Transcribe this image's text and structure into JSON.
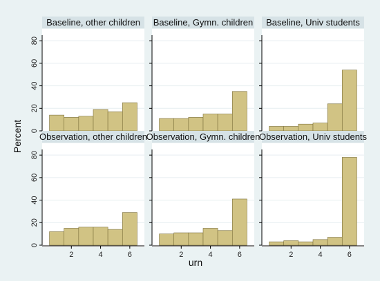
{
  "chart_data": {
    "type": "bar",
    "xlabel": "urn",
    "ylabel": "Percent",
    "xlim": [
      0,
      7
    ],
    "ylim": [
      0,
      85
    ],
    "xticks": [
      2,
      4,
      6
    ],
    "yticks": [
      0,
      20,
      40,
      60,
      80
    ],
    "bin_x": [
      1,
      2,
      3,
      4,
      5,
      6
    ],
    "bar_color": "#d1c384",
    "bar_edge": "#7a6e3a",
    "panel_header_bg": "#d6e2e6",
    "background": "#eaf2f3",
    "panels": [
      {
        "title": "Baseline, other children",
        "values": [
          14,
          12,
          13,
          19,
          17,
          25
        ]
      },
      {
        "title": "Baseline, Gymn. children",
        "values": [
          11,
          11,
          12,
          15,
          15,
          35
        ]
      },
      {
        "title": "Baseline, Univ students",
        "values": [
          4,
          4,
          6,
          7,
          24,
          54
        ]
      },
      {
        "title": "Observation, other children",
        "values": [
          12,
          15,
          16,
          16,
          14,
          29
        ]
      },
      {
        "title": "Observation, Gymn. children",
        "values": [
          10,
          11,
          11,
          15,
          13,
          41
        ]
      },
      {
        "title": "Observation, Univ students",
        "values": [
          3,
          4,
          3,
          5,
          7,
          78
        ]
      }
    ]
  }
}
